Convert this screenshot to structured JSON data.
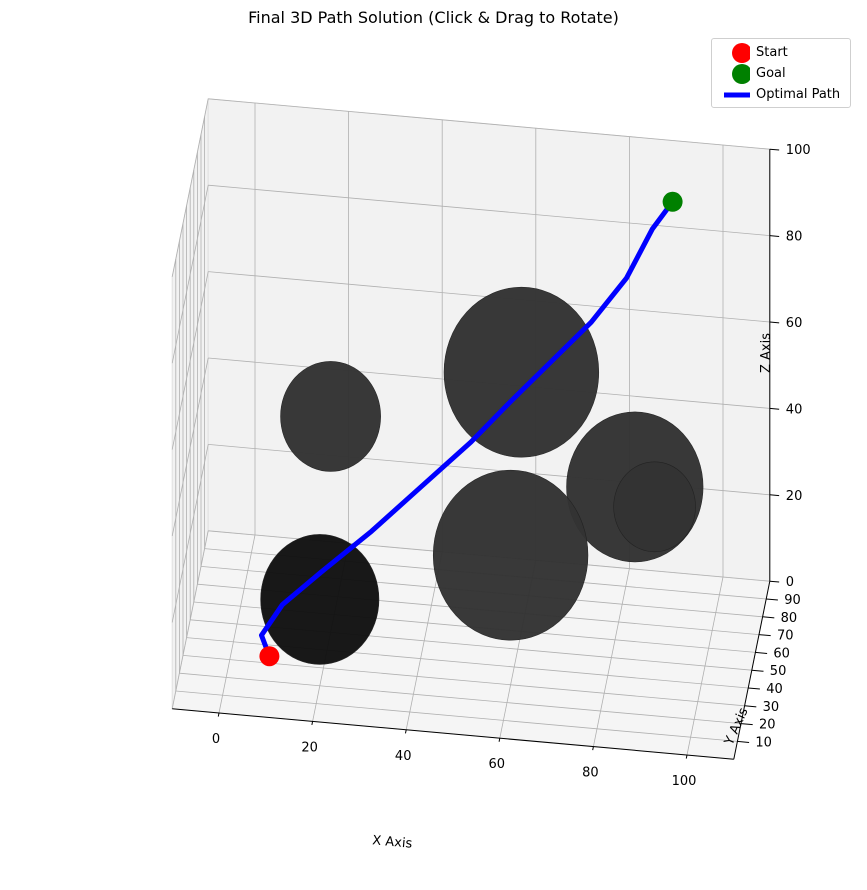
{
  "chart_data": {
    "type": "scatter",
    "title": "Final 3D Path Solution (Click & Drag to Rotate)",
    "xlabel": "X Axis",
    "ylabel": "Y Axis",
    "zlabel": "Z Axis",
    "x_ticks": [
      "0",
      "20",
      "40",
      "60",
      "80",
      "100"
    ],
    "y_ticks": [
      "10",
      "20",
      "30",
      "40",
      "50",
      "60",
      "70",
      "80",
      "90"
    ],
    "z_ticks": [
      "0",
      "20",
      "40",
      "60",
      "80",
      "100"
    ],
    "xlim": [
      0,
      100
    ],
    "ylim": [
      10,
      90
    ],
    "zlim": [
      0,
      100
    ],
    "grid": true,
    "legend_placement": "top-right",
    "legend": [
      {
        "label": "Start",
        "marker": "circle",
        "color": "#ff0000"
      },
      {
        "label": "Goal",
        "marker": "circle",
        "color": "#008000"
      },
      {
        "label": "Optimal Path",
        "marker": "line",
        "color": "#0000ff"
      }
    ],
    "start": {
      "x": 10,
      "y": 10,
      "z": 10
    },
    "goal": {
      "x": 90,
      "y": 90,
      "z": 90
    },
    "obstacles_color": "#333333",
    "obstacles": [
      {
        "center": [
          20,
          50,
          50
        ],
        "radius": 11
      },
      {
        "center": [
          60,
          60,
          60
        ],
        "radius": 17
      },
      {
        "center": [
          20,
          20,
          20
        ],
        "radius": 13
      },
      {
        "center": [
          60,
          30,
          30
        ],
        "radius": 17
      },
      {
        "center": [
          85,
          50,
          40
        ],
        "radius": 15
      },
      {
        "center": [
          90,
          40,
          40
        ],
        "radius": 9
      }
    ],
    "path_color": "#0000ff",
    "path": [
      [
        10,
        10,
        10
      ],
      [
        8,
        14,
        13
      ],
      [
        12,
        20,
        18
      ],
      [
        20,
        26,
        24
      ],
      [
        30,
        34,
        31
      ],
      [
        40,
        42,
        39
      ],
      [
        50,
        50,
        47
      ],
      [
        58,
        58,
        54
      ],
      [
        66,
        65,
        61
      ],
      [
        74,
        72,
        68
      ],
      [
        81,
        79,
        76
      ],
      [
        86,
        86,
        85
      ],
      [
        90,
        90,
        90
      ]
    ]
  }
}
